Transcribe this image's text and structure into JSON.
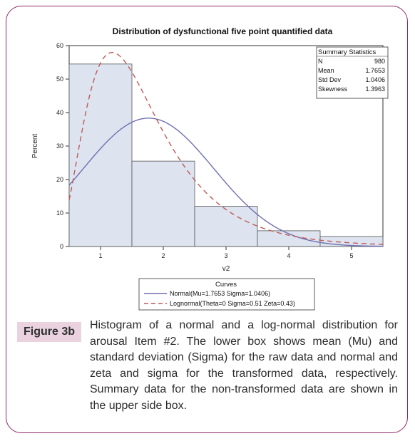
{
  "figure": {
    "label": "Figure 3b",
    "caption": "Histogram of a normal and a log-normal distribution for arousal Item #2. The lower box shows mean (Mu) and standard deviation (Sigma) for the raw data and normal and zeta and sigma for the transformed data, respectively. Summary data for the non-transformed data are shown in the upper side box."
  },
  "chart_data": {
    "type": "bar",
    "title": "Distribution of dysfunctional five point quantified data",
    "xlabel": "v2",
    "ylabel": "Percent",
    "ylim": [
      0,
      60
    ],
    "yticks": [
      "0",
      "10",
      "20",
      "30",
      "40",
      "50",
      "60"
    ],
    "categories": [
      "1",
      "2",
      "3",
      "4",
      "5"
    ],
    "values": [
      54.5,
      25.5,
      12,
      4.7,
      3
    ],
    "bar_color": "#dde4ef",
    "grid": false,
    "summary_box": {
      "title": "Summary Statistics",
      "rows": [
        {
          "label": "N",
          "value": "980"
        },
        {
          "label": "Mean",
          "value": "1.7653"
        },
        {
          "label": "Std Dev",
          "value": "1.0406"
        },
        {
          "label": "Skewness",
          "value": "1.3963"
        }
      ]
    },
    "legend": {
      "title": "Curves",
      "placement": "bottom",
      "items": [
        {
          "label": "Normal(Mu=1.7653 Sigma=1.0406)",
          "color": "#6f6fb0",
          "style": "solid"
        },
        {
          "label": "Lognormal(Theta=0 Sigma=0.51 Zeta=0.43)",
          "color": "#c05a5a",
          "style": "dashed"
        }
      ]
    },
    "curves": [
      {
        "name": "Normal(Mu=1.7653 Sigma=1.0406)",
        "kind": "normal",
        "mu": 1.7653,
        "sigma": 1.0406,
        "color": "#6f6fb0"
      },
      {
        "name": "Lognormal(Theta=0 Sigma=0.51 Zeta=0.43)",
        "kind": "lognormal",
        "theta": 0,
        "sigma": 0.51,
        "zeta": 0.43,
        "color": "#c05a5a"
      }
    ]
  }
}
